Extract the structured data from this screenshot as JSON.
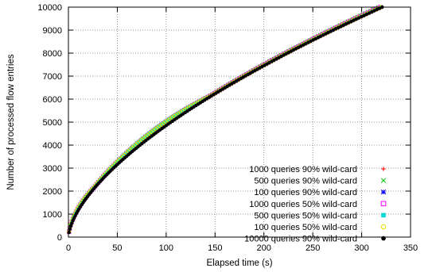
{
  "chart_data": {
    "type": "scatter",
    "title": "",
    "xlabel": "Elapsed time (s)",
    "ylabel": "Number of processed flow entries",
    "xlim": [
      0,
      350
    ],
    "ylim": [
      0,
      10000
    ],
    "xticks": [
      0,
      50,
      100,
      150,
      200,
      250,
      300,
      350
    ],
    "yticks": [
      0,
      1000,
      2000,
      3000,
      4000,
      5000,
      6000,
      7000,
      8000,
      9000,
      10000
    ],
    "grid": true,
    "legend_position": "bottom-right",
    "series": [
      {
        "name": "1000 queries 90% wild-card",
        "marker": "plus",
        "color": "#ff0000",
        "end_time": 318,
        "early_scale": 1.1,
        "bump": 0.03
      },
      {
        "name": "500 queries 90% wild-card",
        "marker": "cross",
        "color": "#00c000",
        "end_time": 317,
        "early_scale": 1.11,
        "bump": 0.035
      },
      {
        "name": "100 queries 90% wild-card",
        "marker": "star",
        "color": "#0000ff",
        "end_time": 319,
        "early_scale": 1.1,
        "bump": 0.04
      },
      {
        "name": "1000 queries 50% wild-card",
        "marker": "square",
        "color": "#ff00ff",
        "end_time": 319,
        "early_scale": 1.12,
        "bump": 0.035
      },
      {
        "name": "500 queries 50% wild-card",
        "marker": "filled-square",
        "color": "#00d8d8",
        "end_time": 320,
        "early_scale": 1.13,
        "bump": 0.045
      },
      {
        "name": "100 queries 50% wild-card",
        "marker": "circle",
        "color": "#e0e000",
        "end_time": 320,
        "early_scale": 1.12,
        "bump": 0.04
      },
      {
        "name": "10000 queries 90% wild-card",
        "marker": "filled-circle",
        "color": "#000000",
        "end_time": 321,
        "early_scale": 1.0,
        "bump": 0.0
      }
    ]
  }
}
